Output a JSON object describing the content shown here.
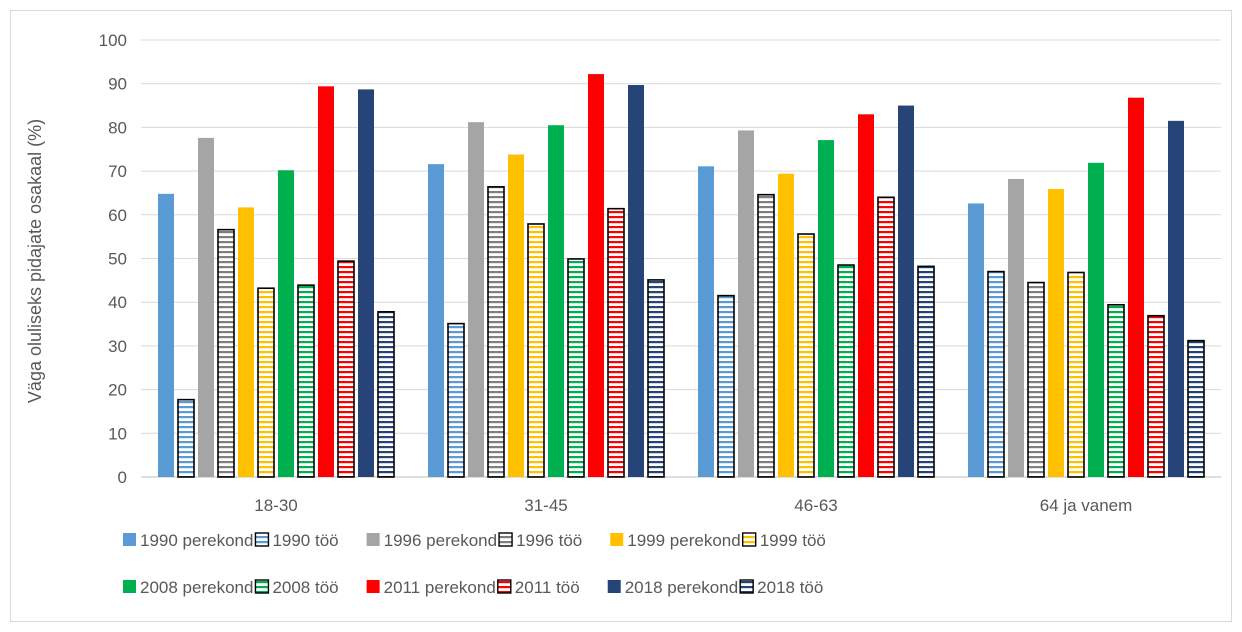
{
  "chart_data": {
    "type": "bar",
    "ylabel": "Väga oluliseks pidajate osakaal (%)",
    "xlabel": "",
    "ylim": [
      0,
      100
    ],
    "yticks": [
      "0",
      "10",
      "20",
      "30",
      "40",
      "50",
      "60",
      "70",
      "80",
      "90",
      "100"
    ],
    "grid": true,
    "legend_position": "bottom",
    "categories": [
      "18-30",
      "31-45",
      "46-63",
      "64 ja vanem"
    ],
    "series": [
      {
        "name": "1990 perekond",
        "color": "#5b9bd5",
        "pattern": "solid",
        "values": [
          64.8,
          71.6,
          71.1,
          62.6
        ]
      },
      {
        "name": "1990 töö",
        "color": "#5b9bd5",
        "pattern": "striped",
        "values": [
          17.7,
          35.1,
          41.5,
          47.0
        ]
      },
      {
        "name": "1996 perekond",
        "color": "#a5a5a5",
        "pattern": "solid",
        "values": [
          77.6,
          81.2,
          79.3,
          68.2
        ]
      },
      {
        "name": "1996 töö",
        "color": "#7f7f7f",
        "pattern": "striped",
        "values": [
          56.6,
          66.4,
          64.6,
          44.5
        ]
      },
      {
        "name": "1999 perekond",
        "color": "#ffc000",
        "pattern": "solid",
        "values": [
          61.7,
          73.8,
          69.4,
          65.9
        ]
      },
      {
        "name": "1999 töö",
        "color": "#ffc000",
        "pattern": "striped",
        "values": [
          43.2,
          57.9,
          55.6,
          46.8
        ]
      },
      {
        "name": "2008 perekond",
        "color": "#00b050",
        "pattern": "solid",
        "values": [
          70.2,
          80.5,
          77.1,
          71.9
        ]
      },
      {
        "name": "2008 töö",
        "color": "#00b050",
        "pattern": "striped",
        "values": [
          43.9,
          49.9,
          48.5,
          39.4
        ]
      },
      {
        "name": "2011 perekond",
        "color": "#ff0000",
        "pattern": "solid",
        "values": [
          89.4,
          92.2,
          83.0,
          86.8
        ]
      },
      {
        "name": "2011 töö",
        "color": "#ff0000",
        "pattern": "striped",
        "values": [
          49.4,
          61.4,
          64.0,
          36.9
        ]
      },
      {
        "name": "2018 perekond",
        "color": "#264478",
        "pattern": "solid",
        "values": [
          88.7,
          89.7,
          85.0,
          81.5
        ]
      },
      {
        "name": "2018 töö",
        "color": "#264478",
        "pattern": "striped",
        "values": [
          37.8,
          45.1,
          48.2,
          31.2
        ]
      }
    ]
  }
}
